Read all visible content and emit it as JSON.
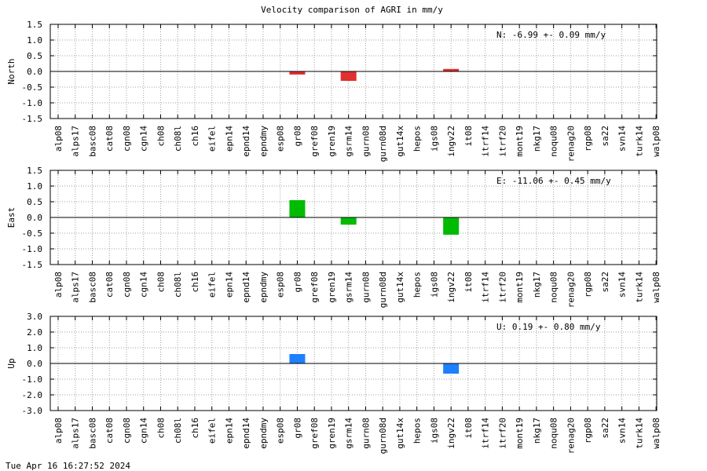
{
  "title": "Velocity comparison of AGRI in mm/y",
  "timestamp": "Tue Apr 16 16:27:52 2024",
  "colors": {
    "north": "#e03030",
    "east": "#00bb00",
    "up": "#1e7fff",
    "grid": "#a0a0a0",
    "axis": "#000000"
  },
  "chart_data": [
    {
      "type": "bar",
      "ylabel": "North",
      "ylim": [
        -1.5,
        1.5
      ],
      "yticks": [
        "1.5",
        "1.0",
        "0.5",
        "0.0",
        "-0.5",
        "-1.0",
        "-1.5"
      ],
      "annotation": "N:  -6.99 +-  0.09 mm/y",
      "grid": true,
      "categories": [
        "alp08",
        "alps17",
        "basc08",
        "cat08",
        "cgn08",
        "cgn14",
        "ch08",
        "ch08l",
        "ch16",
        "eifel",
        "epn14",
        "epnd14",
        "epndmy",
        "esp08",
        "gr08",
        "gref08",
        "gren19",
        "gsrm14",
        "gurn08",
        "gurn08d",
        "gut14x",
        "hepos",
        "igs08",
        "ingv22",
        "it08",
        "itrf14",
        "itrf20",
        "mont19",
        "nkg17",
        "noqu08",
        "renag20",
        "rgp08",
        "sa22",
        "svn14",
        "turk14",
        "walp08"
      ],
      "values": [
        null,
        null,
        null,
        null,
        null,
        null,
        null,
        null,
        null,
        null,
        null,
        null,
        null,
        null,
        -0.1,
        null,
        null,
        -0.3,
        null,
        null,
        null,
        null,
        null,
        0.08,
        null,
        null,
        null,
        null,
        null,
        null,
        null,
        null,
        null,
        null,
        null,
        null
      ]
    },
    {
      "type": "bar",
      "ylabel": "East",
      "ylim": [
        -1.5,
        1.5
      ],
      "yticks": [
        "1.5",
        "1.0",
        "0.5",
        "0.0",
        "-0.5",
        "-1.0",
        "-1.5"
      ],
      "annotation": "E: -11.06 +-  0.45 mm/y",
      "grid": true,
      "categories": [
        "alp08",
        "alps17",
        "basc08",
        "cat08",
        "cgn08",
        "cgn14",
        "ch08",
        "ch08l",
        "ch16",
        "eifel",
        "epn14",
        "epnd14",
        "epndmy",
        "esp08",
        "gr08",
        "gref08",
        "gren19",
        "gsrm14",
        "gurn08",
        "gurn08d",
        "gut14x",
        "hepos",
        "igs08",
        "ingv22",
        "it08",
        "itrf14",
        "itrf20",
        "mont19",
        "nkg17",
        "noqu08",
        "renag20",
        "rgp08",
        "sa22",
        "svn14",
        "turk14",
        "walp08"
      ],
      "values": [
        null,
        null,
        null,
        null,
        null,
        null,
        null,
        null,
        null,
        null,
        null,
        null,
        null,
        null,
        0.55,
        null,
        null,
        -0.23,
        null,
        null,
        null,
        null,
        null,
        -0.55,
        null,
        null,
        null,
        null,
        null,
        null,
        null,
        null,
        null,
        null,
        null,
        null
      ]
    },
    {
      "type": "bar",
      "ylabel": "Up",
      "ylim": [
        -3.0,
        3.0
      ],
      "yticks": [
        "3.0",
        "2.0",
        "1.0",
        "0.0",
        "-1.0",
        "-2.0",
        "-3.0"
      ],
      "annotation": "U:   0.19 +-  0.80 mm/y",
      "grid": true,
      "categories": [
        "alp08",
        "alps17",
        "basc08",
        "cat08",
        "cgn08",
        "cgn14",
        "ch08",
        "ch08l",
        "ch16",
        "eifel",
        "epn14",
        "epnd14",
        "epndmy",
        "esp08",
        "gr08",
        "gref08",
        "gren19",
        "gsrm14",
        "gurn08",
        "gurn08d",
        "gut14x",
        "hepos",
        "igs08",
        "ingv22",
        "it08",
        "itrf14",
        "itrf20",
        "mont19",
        "nkg17",
        "noqu08",
        "renag20",
        "rgp08",
        "sa22",
        "svn14",
        "turk14",
        "walp08"
      ],
      "values": [
        null,
        null,
        null,
        null,
        null,
        null,
        null,
        null,
        null,
        null,
        null,
        null,
        null,
        null,
        0.6,
        null,
        null,
        null,
        null,
        null,
        null,
        null,
        null,
        -0.65,
        null,
        null,
        null,
        null,
        null,
        null,
        null,
        null,
        null,
        null,
        null,
        null
      ]
    }
  ]
}
